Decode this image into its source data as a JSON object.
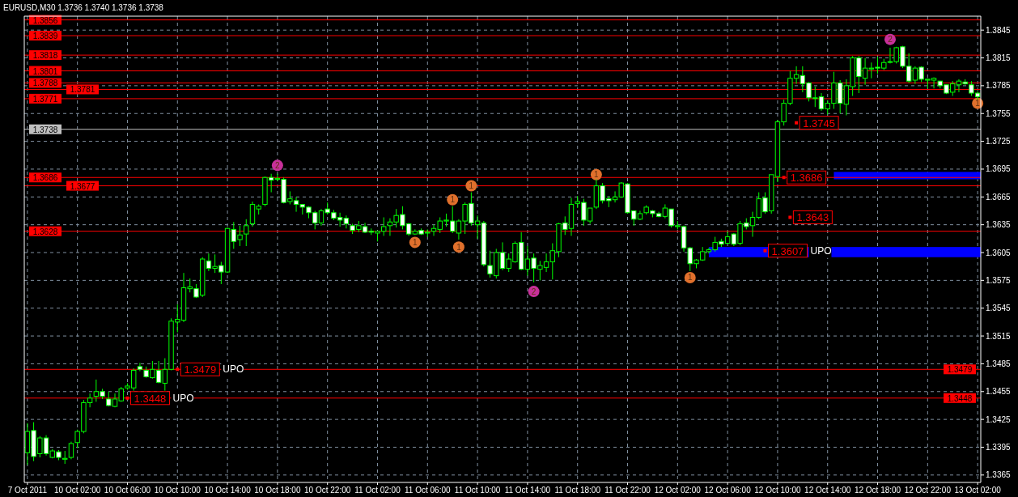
{
  "chart_data": {
    "type": "candlestick",
    "title": "EURUSD,M30  1.3736 1.3740 1.3736 1.3738",
    "categories": [
      "7 Oct 2011",
      null,
      null,
      null,
      null,
      null,
      null,
      null,
      "10 Oct 02:00",
      null,
      null,
      null,
      null,
      null,
      null,
      null,
      "10 Oct 06:00",
      null,
      null,
      null,
      null,
      null,
      null,
      null,
      "10 Oct 10:00",
      null,
      null,
      null,
      null,
      null,
      null,
      null,
      "10 Oct 14:00",
      null,
      null,
      null,
      null,
      null,
      null,
      null,
      "10 Oct 18:00",
      null,
      null,
      null,
      null,
      null,
      null,
      null,
      "10 Oct 22:00",
      null,
      null,
      null,
      null,
      null,
      null,
      null,
      "11 Oct 02:00",
      null,
      null,
      null,
      null,
      null,
      null,
      null,
      "11 Oct 06:00",
      null,
      null,
      null,
      null,
      null,
      null,
      null,
      "11 Oct 10:00",
      null,
      null,
      null,
      null,
      null,
      null,
      null,
      "11 Oct 14:00",
      null,
      null,
      null,
      null,
      null,
      null,
      null,
      "11 Oct 18:00",
      null,
      null,
      null,
      null,
      null,
      null,
      null,
      "11 Oct 22:00",
      null,
      null,
      null,
      null,
      null,
      null,
      null,
      "12 Oct 02:00",
      null,
      null,
      null,
      null,
      null,
      null,
      null,
      "12 Oct 06:00",
      null,
      null,
      null,
      null,
      null,
      null,
      null,
      "12 Oct 10:00",
      null,
      null,
      null,
      null,
      null,
      null,
      null,
      "12 Oct 14:00",
      null,
      null,
      null,
      null,
      null,
      null,
      null,
      "12 Oct 18:00",
      null,
      null,
      null,
      null,
      null,
      null,
      null,
      "12 Oct 22:00",
      null,
      null,
      null,
      null,
      null,
      null,
      null,
      "13 Oct 02:00"
    ],
    "ohlc": [
      [
        1.3389,
        1.3421,
        1.3376,
        1.3412
      ],
      [
        1.3413,
        1.3422,
        1.338,
        1.3385
      ],
      [
        1.3388,
        1.3407,
        1.3384,
        1.3405
      ],
      [
        1.3405,
        1.3408,
        1.3386,
        1.3388
      ],
      [
        1.3384,
        1.3393,
        1.3383,
        1.3391
      ],
      [
        1.339,
        1.3392,
        1.3381,
        1.3384
      ],
      [
        1.3382,
        1.3391,
        1.3377,
        1.3383
      ],
      [
        1.3384,
        1.3401,
        1.3382,
        1.3399
      ],
      [
        1.34,
        1.3414,
        1.3394,
        1.3412
      ],
      [
        1.3412,
        1.3446,
        1.341,
        1.3443
      ],
      [
        1.3443,
        1.3453,
        1.3438,
        1.3448
      ],
      [
        1.345,
        1.3468,
        1.3444,
        1.3455
      ],
      [
        1.3455,
        1.3458,
        1.3447,
        1.345
      ],
      [
        1.3447,
        1.3455,
        1.3439,
        1.344
      ],
      [
        1.3439,
        1.3453,
        1.3438,
        1.3447
      ],
      [
        1.3445,
        1.346,
        1.3444,
        1.3458
      ],
      [
        1.3459,
        1.3464,
        1.3457,
        1.3461
      ],
      [
        1.3459,
        1.348,
        1.3456,
        1.3478
      ],
      [
        1.3482,
        1.3486,
        1.3477,
        1.3479
      ],
      [
        1.3478,
        1.3482,
        1.347,
        1.3471
      ],
      [
        1.347,
        1.3488,
        1.3469,
        1.3479
      ],
      [
        1.3478,
        1.3488,
        1.3464,
        1.3465
      ],
      [
        1.3464,
        1.3491,
        1.3456,
        1.3479
      ],
      [
        1.3479,
        1.3534,
        1.3478,
        1.3531
      ],
      [
        1.353,
        1.3549,
        1.3519,
        1.3533
      ],
      [
        1.3532,
        1.3583,
        1.353,
        1.3567
      ],
      [
        1.3566,
        1.3577,
        1.3562,
        1.3568
      ],
      [
        1.3566,
        1.3571,
        1.3556,
        1.3557
      ],
      [
        1.3559,
        1.36,
        1.3557,
        1.3598
      ],
      [
        1.3596,
        1.3604,
        1.3585,
        1.3588
      ],
      [
        1.3588,
        1.3603,
        1.3583,
        1.359
      ],
      [
        1.3591,
        1.3595,
        1.3571,
        1.3584
      ],
      [
        1.3584,
        1.3632,
        1.3583,
        1.3631
      ],
      [
        1.363,
        1.3638,
        1.3609,
        1.3617
      ],
      [
        1.3619,
        1.3634,
        1.3612,
        1.3624
      ],
      [
        1.3625,
        1.3641,
        1.3612,
        1.3634
      ],
      [
        1.3636,
        1.366,
        1.3633,
        1.3657
      ],
      [
        1.3652,
        1.3657,
        1.3646,
        1.3655
      ],
      [
        1.3657,
        1.3687,
        1.3655,
        1.3686
      ],
      [
        1.3686,
        1.369,
        1.367,
        1.3683
      ],
      [
        1.3684,
        1.369,
        1.3682,
        1.3685
      ],
      [
        1.3684,
        1.3686,
        1.3658,
        1.3659
      ],
      [
        1.366,
        1.3671,
        1.3657,
        1.3663
      ],
      [
        1.3661,
        1.3665,
        1.3649,
        1.3657
      ],
      [
        1.3657,
        1.3657,
        1.3646,
        1.3654
      ],
      [
        1.3654,
        1.3655,
        1.3642,
        1.3648
      ],
      [
        1.3648,
        1.365,
        1.363,
        1.3637
      ],
      [
        1.3637,
        1.3652,
        1.3634,
        1.365
      ],
      [
        1.3652,
        1.3659,
        1.3646,
        1.3648
      ],
      [
        1.3648,
        1.3651,
        1.364,
        1.3642
      ],
      [
        1.3643,
        1.3648,
        1.3633,
        1.364
      ],
      [
        1.3642,
        1.3645,
        1.3631,
        1.3636
      ],
      [
        1.3634,
        1.3636,
        1.3625,
        1.3629
      ],
      [
        1.363,
        1.3639,
        1.3627,
        1.3634
      ],
      [
        1.3633,
        1.3637,
        1.3626,
        1.3627
      ],
      [
        1.3628,
        1.3631,
        1.3624,
        1.3627
      ],
      [
        1.3626,
        1.3628,
        1.3617,
        1.3628
      ],
      [
        1.3628,
        1.3643,
        1.3623,
        1.3633
      ],
      [
        1.3634,
        1.3642,
        1.3623,
        1.3638
      ],
      [
        1.3638,
        1.3652,
        1.3632,
        1.3645
      ],
      [
        1.3646,
        1.3655,
        1.363,
        1.3634
      ],
      [
        1.3636,
        1.3637,
        1.3623,
        1.3625
      ],
      [
        1.3625,
        1.363,
        1.3624,
        1.3628
      ],
      [
        1.3629,
        1.3631,
        1.3624,
        1.3625
      ],
      [
        1.3626,
        1.363,
        1.3622,
        1.3627
      ],
      [
        1.3628,
        1.3635,
        1.3623,
        1.3631
      ],
      [
        1.363,
        1.3643,
        1.3626,
        1.3639
      ],
      [
        1.3639,
        1.3647,
        1.3633,
        1.364
      ],
      [
        1.3639,
        1.3655,
        1.3626,
        1.3628
      ],
      [
        1.3626,
        1.3641,
        1.3619,
        1.3639
      ],
      [
        1.3639,
        1.3659,
        1.3625,
        1.3657
      ],
      [
        1.3658,
        1.367,
        1.3634,
        1.3637
      ],
      [
        1.3635,
        1.3645,
        1.362,
        1.3639
      ],
      [
        1.3637,
        1.3639,
        1.359,
        1.3592
      ],
      [
        1.3591,
        1.3607,
        1.3578,
        1.3582
      ],
      [
        1.358,
        1.3609,
        1.3577,
        1.3605
      ],
      [
        1.3605,
        1.3616,
        1.3586,
        1.3588
      ],
      [
        1.3588,
        1.3604,
        1.3584,
        1.3598
      ],
      [
        1.3595,
        1.3617,
        1.3594,
        1.3615
      ],
      [
        1.3616,
        1.3627,
        1.3586,
        1.3587
      ],
      [
        1.3587,
        1.3612,
        1.358,
        1.3598
      ],
      [
        1.3599,
        1.3604,
        1.3573,
        1.3588
      ],
      [
        1.3587,
        1.3596,
        1.3575,
        1.3591
      ],
      [
        1.3589,
        1.3604,
        1.3584,
        1.3595
      ],
      [
        1.3595,
        1.3615,
        1.3576,
        1.3607
      ],
      [
        1.3606,
        1.3637,
        1.36,
        1.3636
      ],
      [
        1.3637,
        1.3644,
        1.3624,
        1.363
      ],
      [
        1.3631,
        1.3664,
        1.3623,
        1.3657
      ],
      [
        1.3658,
        1.3666,
        1.3653,
        1.366
      ],
      [
        1.3659,
        1.3663,
        1.3634,
        1.364
      ],
      [
        1.3639,
        1.3653,
        1.3636,
        1.3653
      ],
      [
        1.3654,
        1.3684,
        1.3652,
        1.3677
      ],
      [
        1.3677,
        1.368,
        1.3658,
        1.3661
      ],
      [
        1.3663,
        1.3666,
        1.3654,
        1.3661
      ],
      [
        1.3662,
        1.3671,
        1.3659,
        1.3665
      ],
      [
        1.3665,
        1.3681,
        1.3664,
        1.368
      ],
      [
        1.3679,
        1.368,
        1.3647,
        1.3648
      ],
      [
        1.365,
        1.365,
        1.3634,
        1.3641
      ],
      [
        1.3641,
        1.365,
        1.364,
        1.3647
      ],
      [
        1.3648,
        1.3656,
        1.3646,
        1.3654
      ],
      [
        1.365,
        1.3651,
        1.3643,
        1.3647
      ],
      [
        1.3647,
        1.3649,
        1.3643,
        1.3644
      ],
      [
        1.3644,
        1.3657,
        1.3642,
        1.3653
      ],
      [
        1.3652,
        1.3652,
        1.3632,
        1.3634
      ],
      [
        1.3633,
        1.3639,
        1.363,
        1.3634
      ],
      [
        1.3633,
        1.3634,
        1.3606,
        1.361
      ],
      [
        1.361,
        1.3611,
        1.3585,
        1.3593
      ],
      [
        1.3593,
        1.3598,
        1.3588,
        1.3597
      ],
      [
        1.3597,
        1.3611,
        1.3596,
        1.3606
      ],
      [
        1.3606,
        1.361,
        1.3604,
        1.3608
      ],
      [
        1.3608,
        1.3622,
        1.3606,
        1.3616
      ],
      [
        1.3617,
        1.362,
        1.3611,
        1.3614
      ],
      [
        1.3615,
        1.3628,
        1.3614,
        1.3622
      ],
      [
        1.3625,
        1.3626,
        1.3612,
        1.3614
      ],
      [
        1.3615,
        1.3639,
        1.3613,
        1.3636
      ],
      [
        1.3637,
        1.3642,
        1.363,
        1.3633
      ],
      [
        1.3634,
        1.3649,
        1.3622,
        1.3643
      ],
      [
        1.3643,
        1.367,
        1.3641,
        1.3663
      ],
      [
        1.3664,
        1.367,
        1.3647,
        1.3649
      ],
      [
        1.365,
        1.3689,
        1.3647,
        1.3689
      ],
      [
        1.3687,
        1.3748,
        1.3681,
        1.3746
      ],
      [
        1.3746,
        1.377,
        1.3742,
        1.3766
      ],
      [
        1.3766,
        1.3801,
        1.3764,
        1.3793
      ],
      [
        1.3793,
        1.3806,
        1.3787,
        1.3797
      ],
      [
        1.3796,
        1.3806,
        1.3778,
        1.3787
      ],
      [
        1.3788,
        1.3789,
        1.3768,
        1.3772
      ],
      [
        1.3772,
        1.3784,
        1.3762,
        1.3772
      ],
      [
        1.3773,
        1.3777,
        1.3758,
        1.376
      ],
      [
        1.376,
        1.3769,
        1.3754,
        1.3766
      ],
      [
        1.3766,
        1.38,
        1.376,
        1.3788
      ],
      [
        1.3788,
        1.3791,
        1.3755,
        1.3766
      ],
      [
        1.3765,
        1.3792,
        1.3753,
        1.3785
      ],
      [
        1.3784,
        1.3817,
        1.3774,
        1.3815
      ],
      [
        1.3815,
        1.3817,
        1.3777,
        1.3795
      ],
      [
        1.3793,
        1.3815,
        1.3786,
        1.3804
      ],
      [
        1.3803,
        1.381,
        1.3793,
        1.3804
      ],
      [
        1.3805,
        1.3816,
        1.3798,
        1.3804
      ],
      [
        1.3804,
        1.3814,
        1.3802,
        1.381
      ],
      [
        1.3811,
        1.3826,
        1.3809,
        1.3811
      ],
      [
        1.3811,
        1.3827,
        1.3809,
        1.3826
      ],
      [
        1.3827,
        1.3828,
        1.3804,
        1.3806
      ],
      [
        1.3806,
        1.382,
        1.3788,
        1.379
      ],
      [
        1.3791,
        1.3806,
        1.3787,
        1.3804
      ],
      [
        1.3805,
        1.3806,
        1.3789,
        1.3792
      ],
      [
        1.3791,
        1.3793,
        1.3782,
        1.3792
      ],
      [
        1.3791,
        1.3794,
        1.3782,
        1.3793
      ],
      [
        1.379,
        1.379,
        1.3782,
        1.3785
      ],
      [
        1.3786,
        1.3786,
        1.3776,
        1.3777
      ],
      [
        1.3778,
        1.379,
        1.3774,
        1.3787
      ],
      [
        1.3786,
        1.3792,
        1.3778,
        1.379
      ],
      [
        1.3789,
        1.3792,
        1.3786,
        1.3787
      ],
      [
        1.3786,
        1.379,
        1.3774,
        1.3777
      ],
      [
        1.3777,
        1.3779,
        1.377,
        1.3773
      ]
    ],
    "series": [
      {
        "type": "scatter",
        "marker": "circle",
        "color": "#e0702c",
        "values": [
          null,
          null,
          null,
          null,
          null,
          null,
          null,
          null,
          null,
          null,
          null,
          null,
          null,
          null,
          null,
          null,
          null,
          null,
          null,
          null,
          null,
          null,
          null,
          null,
          null,
          null,
          null,
          null,
          null,
          null,
          null,
          null,
          null,
          null,
          null,
          null,
          null,
          null,
          null,
          null,
          null,
          null,
          null,
          null,
          null,
          null,
          null,
          null,
          null,
          null,
          null,
          null,
          null,
          null,
          null,
          null,
          null,
          null,
          null,
          null,
          null,
          null,
          1.3616,
          null,
          null,
          null,
          null,
          null,
          1.3662,
          1.3611,
          null,
          1.3677,
          null,
          null,
          null,
          null,
          null,
          null,
          null,
          null,
          null,
          null,
          null,
          null,
          null,
          null,
          null,
          null,
          null,
          null,
          null,
          1.3689,
          null,
          null,
          null,
          null,
          null,
          null,
          null,
          null,
          null,
          null,
          null,
          null,
          null,
          null,
          1.3578,
          null,
          null,
          null,
          null,
          null,
          null,
          null,
          null,
          null,
          null,
          null,
          null,
          null,
          null,
          null,
          null,
          null,
          null,
          null,
          null,
          null,
          null,
          null,
          null,
          null,
          null,
          null,
          null,
          null,
          null,
          null,
          null,
          null,
          null,
          null,
          null,
          null,
          null,
          null,
          null,
          null,
          null,
          null,
          null,
          null,
          1.3766
        ]
      },
      {
        "type": "scatter",
        "marker": "circle",
        "color": "#c8309a",
        "values": [
          null,
          null,
          null,
          null,
          null,
          null,
          null,
          null,
          null,
          null,
          null,
          null,
          null,
          null,
          null,
          null,
          null,
          null,
          null,
          null,
          null,
          null,
          null,
          null,
          null,
          null,
          null,
          null,
          null,
          null,
          null,
          null,
          null,
          null,
          null,
          null,
          null,
          null,
          null,
          null,
          1.3699,
          null,
          null,
          null,
          null,
          null,
          null,
          null,
          null,
          null,
          null,
          null,
          null,
          null,
          null,
          null,
          null,
          null,
          null,
          null,
          null,
          null,
          null,
          null,
          null,
          null,
          null,
          null,
          null,
          null,
          null,
          null,
          null,
          null,
          null,
          null,
          null,
          null,
          null,
          null,
          null,
          1.3563,
          null,
          null,
          null,
          null,
          null,
          null,
          null,
          null,
          null,
          null,
          null,
          null,
          null,
          null,
          null,
          null,
          null,
          null,
          null,
          null,
          null,
          null,
          null,
          null,
          null,
          null,
          null,
          null,
          null,
          null,
          null,
          null,
          null,
          null,
          null,
          null,
          null,
          null,
          null,
          null,
          null,
          null,
          null,
          null,
          null,
          null,
          null,
          null,
          null,
          null,
          null,
          null,
          null,
          null,
          null,
          null,
          1.3835,
          null,
          null,
          null,
          null,
          null,
          null,
          null,
          null,
          null,
          null,
          null,
          null,
          null,
          null
        ]
      },
      {
        "type": "scatter",
        "marker": "square",
        "color": "#ff0000",
        "values": [
          null,
          null,
          null,
          null,
          null,
          null,
          null,
          null,
          null,
          null,
          null,
          null,
          null,
          null,
          null,
          null,
          1.3448,
          null,
          null,
          null,
          null,
          null,
          null,
          null,
          1.3479,
          null,
          null,
          null,
          null,
          null,
          null,
          null,
          null,
          null,
          null,
          null,
          null,
          null,
          null,
          null,
          null,
          null,
          null,
          null,
          null,
          null,
          null,
          null,
          null,
          null,
          null,
          null,
          null,
          null,
          null,
          null,
          null,
          null,
          null,
          null,
          null,
          null,
          null,
          null,
          null,
          null,
          null,
          null,
          null,
          null,
          null,
          null,
          null,
          null,
          null,
          null,
          null,
          null,
          null,
          null,
          null,
          null,
          null,
          null,
          null,
          null,
          null,
          null,
          null,
          null,
          null,
          null,
          null,
          null,
          null,
          null,
          null,
          null,
          null,
          null,
          null,
          null,
          null,
          null,
          null,
          null,
          null,
          null,
          null,
          null,
          null,
          null,
          null,
          null,
          null,
          null,
          null,
          null,
          1.3607,
          null,
          null,
          1.3686,
          1.3643,
          1.3745,
          null,
          null,
          null,
          null,
          null,
          null,
          null,
          null,
          null,
          null,
          null,
          null,
          null,
          null,
          null,
          null,
          null,
          null,
          null,
          null,
          null,
          null,
          null,
          null,
          null,
          null,
          null,
          null,
          null
        ],
        "value_labels": [
          null,
          null,
          null,
          null,
          null,
          null,
          null,
          null,
          null,
          null,
          null,
          null,
          null,
          null,
          null,
          null,
          "1.3448",
          null,
          null,
          null,
          null,
          null,
          null,
          null,
          "1.3479",
          null,
          null,
          null,
          null,
          null,
          null,
          null,
          null,
          null,
          null,
          null,
          null,
          null,
          null,
          null,
          null,
          null,
          null,
          null,
          null,
          null,
          null,
          null,
          null,
          null,
          null,
          null,
          null,
          null,
          null,
          null,
          null,
          null,
          null,
          null,
          null,
          null,
          null,
          null,
          null,
          null,
          null,
          null,
          null,
          null,
          null,
          null,
          null,
          null,
          null,
          null,
          null,
          null,
          null,
          null,
          null,
          null,
          null,
          null,
          null,
          null,
          null,
          null,
          null,
          null,
          null,
          null,
          null,
          null,
          null,
          null,
          null,
          null,
          null,
          null,
          null,
          null,
          null,
          null,
          null,
          null,
          null,
          null,
          null,
          null,
          null,
          null,
          null,
          null,
          null,
          null,
          null,
          null,
          "1.3607",
          null,
          null,
          "1.3686",
          "1.3643",
          "1.3745",
          null,
          null,
          null,
          null,
          null,
          null,
          null,
          null,
          null,
          null,
          null,
          null,
          null,
          null,
          null,
          null,
          null,
          null,
          null,
          null,
          null,
          null,
          null,
          null,
          null,
          null,
          null,
          null,
          null
        ]
      }
    ],
    "annotations": [
      {
        "text": "UPO",
        "y": 1.3448
      },
      {
        "text": "UPO",
        "y": 1.3479
      },
      {
        "text": "UPO",
        "y": 1.3607
      },
      {
        "text": "1",
        "y": 1.3616
      },
      {
        "text": "1",
        "y": 1.3662
      },
      {
        "text": "1",
        "y": 1.3611
      },
      {
        "text": "1",
        "y": 1.3677
      },
      {
        "text": "1",
        "y": 1.3689
      },
      {
        "text": "1",
        "y": 1.3578
      },
      {
        "text": "1",
        "y": 1.3766
      },
      {
        "text": "2",
        "y": 1.3699
      },
      {
        "text": "2",
        "y": 1.3563
      },
      {
        "text": "2",
        "y": 1.3835
      }
    ],
    "ref_lines": [
      {
        "axis": "y",
        "value": 1.3856,
        "label": "1.3856",
        "color": "#ff0000"
      },
      {
        "axis": "y",
        "value": 1.3839,
        "label": "1.3839",
        "color": "#ff0000"
      },
      {
        "axis": "y",
        "value": 1.3818,
        "label": "1.3818",
        "color": "#ff0000"
      },
      {
        "axis": "y",
        "value": 1.3801,
        "label": "1.3801",
        "color": "#ff0000"
      },
      {
        "axis": "y",
        "value": 1.3788,
        "label": "1.3788",
        "color": "#ff0000"
      },
      {
        "axis": "y",
        "value": 1.3781,
        "label": "1.3781",
        "color": "#ff0000"
      },
      {
        "axis": "y",
        "value": 1.3771,
        "label": "1.3771",
        "color": "#ff0000"
      },
      {
        "axis": "y",
        "value": 1.3738,
        "label": "1.3738",
        "color": "#c0c0c0"
      },
      {
        "axis": "y",
        "value": 1.3686,
        "label": "1.3686",
        "color": "#ff0000"
      },
      {
        "axis": "y",
        "value": 1.3677,
        "label": "1.3677",
        "color": "#ff0000"
      },
      {
        "axis": "y",
        "value": 1.3628,
        "label": "1.3628",
        "color": "#ff0000"
      },
      {
        "axis": "y",
        "value": 1.3479,
        "label": "1.3479",
        "color": "#ff0000"
      },
      {
        "axis": "y",
        "value": 1.3448,
        "label": "1.3448",
        "color": "#ff0000"
      }
    ],
    "bands": [
      {
        "axis": "y",
        "from": 1.36,
        "to": 1.3611,
        "color": "#0000ff"
      },
      {
        "axis": "y",
        "from": 1.3684,
        "to": 1.3692,
        "color": "#0000ff"
      }
    ],
    "ylim": [
      1.3357,
      1.386
    ],
    "yticks": [
      1.3365,
      1.3395,
      1.3425,
      1.3455,
      1.3485,
      1.3515,
      1.3545,
      1.3575,
      1.3605,
      1.3635,
      1.3665,
      1.3695,
      1.3725,
      1.3755,
      1.3785,
      1.3815,
      1.3845
    ],
    "grid": true
  }
}
